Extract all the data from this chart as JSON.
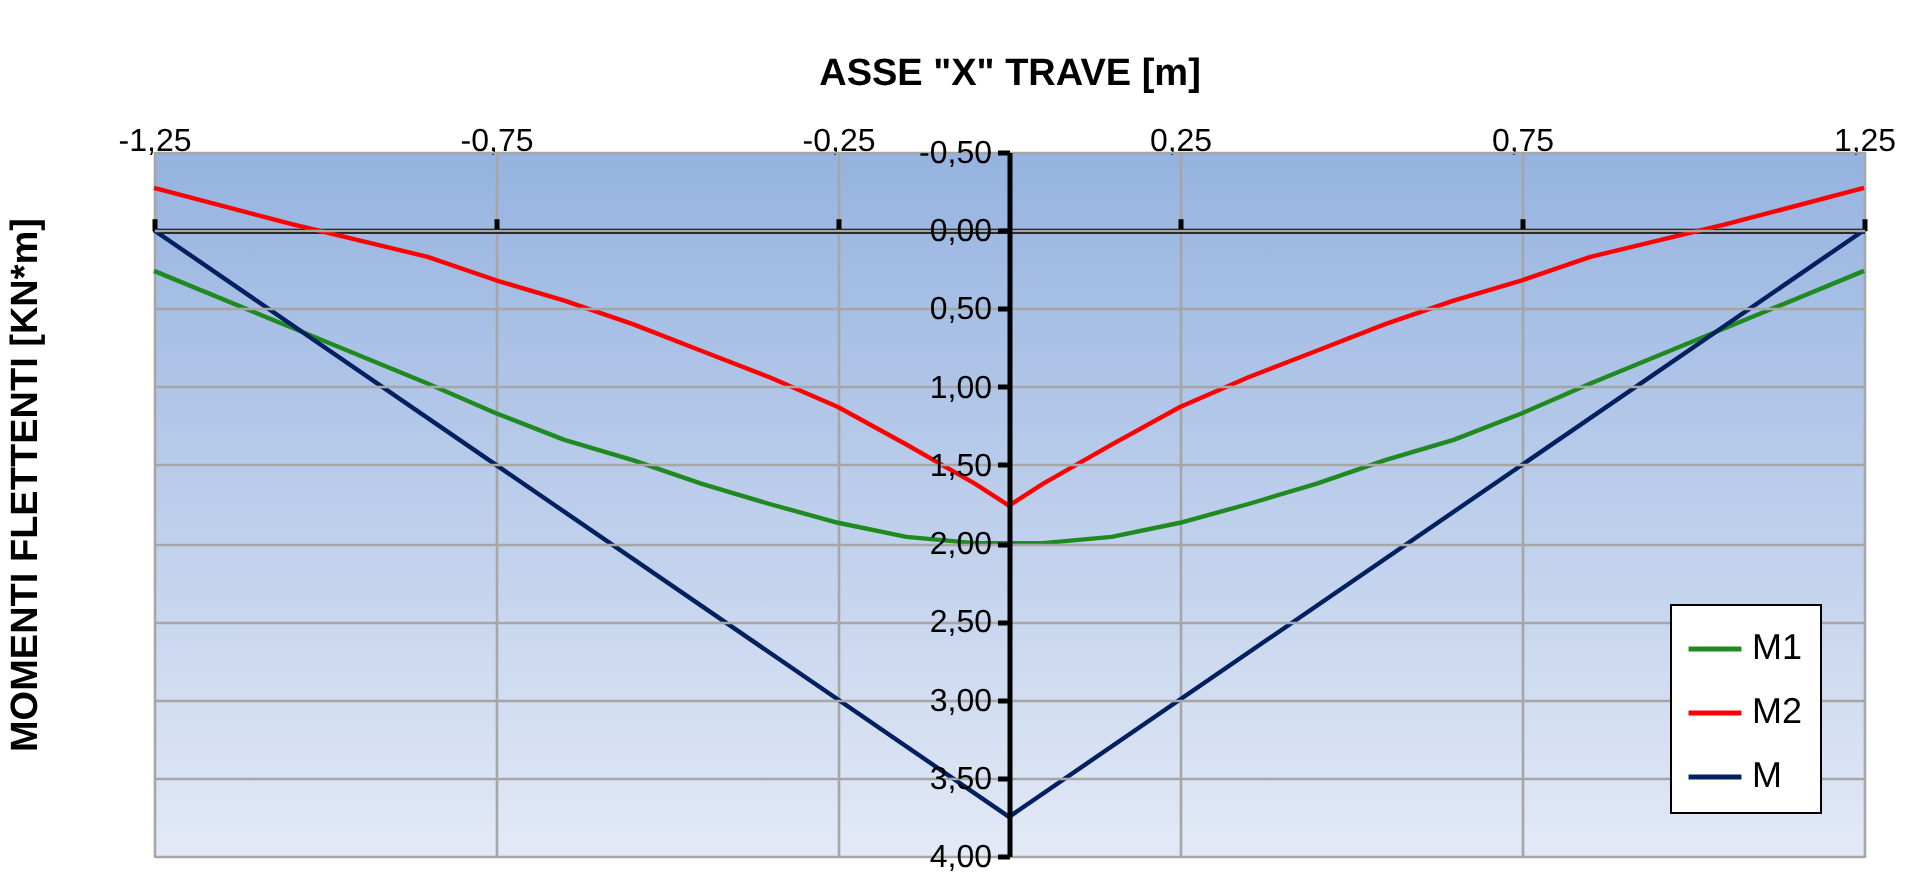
{
  "chart_data": {
    "type": "line",
    "xlabel": "ASSE \"X\" TRAVE [m]",
    "ylabel": "MOMENTI FLETTENTI [KN*m]",
    "xlim": [
      -1.25,
      1.25
    ],
    "xticks": [
      {
        "value": -1.25,
        "label": "-1,25"
      },
      {
        "value": -0.75,
        "label": "-0,75"
      },
      {
        "value": -0.25,
        "label": "-0,25"
      },
      {
        "value": 0.25,
        "label": "0,25"
      },
      {
        "value": 0.75,
        "label": "0,75"
      },
      {
        "value": 1.25,
        "label": "1,25"
      }
    ],
    "ylim": [
      4,
      -0.5
    ],
    "yticks": [
      {
        "value": -0.5,
        "label": "-0,50"
      },
      {
        "value": 0,
        "label": "0,00"
      },
      {
        "value": 0.5,
        "label": "0,50"
      },
      {
        "value": 1,
        "label": "1,00"
      },
      {
        "value": 1.5,
        "label": "1,50"
      },
      {
        "value": 2,
        "label": "2,00"
      },
      {
        "value": 2.5,
        "label": "2,50"
      },
      {
        "value": 3,
        "label": "3,00"
      },
      {
        "value": 3.5,
        "label": "3,50"
      },
      {
        "value": 4,
        "label": "4,00"
      }
    ],
    "grid": true,
    "legend": "bottom right",
    "x": [
      -1.25,
      -1.05,
      -0.85,
      -0.75,
      -0.65,
      -0.55,
      -0.45,
      -0.35,
      -0.25,
      -0.15,
      -0.05,
      0,
      0.05,
      0.15,
      0.25,
      0.35,
      0.45,
      0.55,
      0.65,
      0.75,
      0.85,
      1.05,
      1.25
    ],
    "series": [
      {
        "name": "M1",
        "color": "#1f8a1f",
        "values": [
          0.26,
          0.62,
          0.98,
          1.17,
          1.34,
          1.47,
          1.62,
          1.75,
          1.87,
          1.96,
          2.0,
          2.0,
          2.0,
          1.96,
          1.87,
          1.75,
          1.62,
          1.47,
          1.34,
          1.17,
          0.98,
          0.62,
          0.26
        ]
      },
      {
        "name": "M2",
        "color": "#ff0000",
        "values": [
          -0.27,
          -0.04,
          0.17,
          0.32,
          0.45,
          0.6,
          0.77,
          0.94,
          1.13,
          1.37,
          1.62,
          1.76,
          1.62,
          1.37,
          1.13,
          0.94,
          0.77,
          0.6,
          0.45,
          0.32,
          0.17,
          -0.04,
          -0.27
        ]
      },
      {
        "name": "M",
        "color": "#002060",
        "x": [
          -1.25,
          0,
          1.25
        ],
        "values": [
          0,
          3.75,
          0
        ]
      }
    ]
  }
}
